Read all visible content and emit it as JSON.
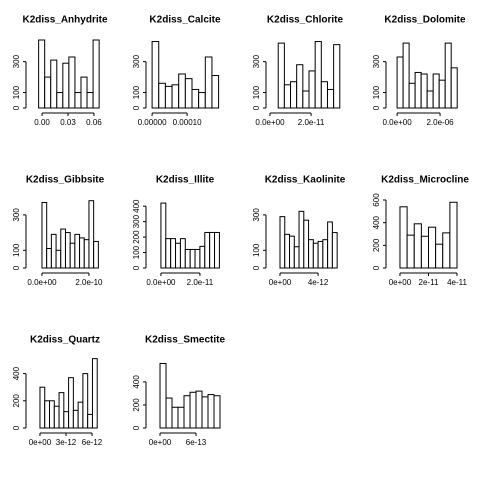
{
  "chart_data": [
    {
      "type": "histogram",
      "title": "K2diss_Anhydrite",
      "bins": [
        -0.004,
        0.003,
        0.01,
        0.017,
        0.024,
        0.031,
        0.038,
        0.045,
        0.052,
        0.059,
        0.066
      ],
      "values": [
        440,
        200,
        310,
        100,
        290,
        330,
        100,
        200,
        100,
        440
      ],
      "xlim": [
        -0.014,
        0.067
      ],
      "xticks": [
        {
          "value": 0,
          "label": "0.00"
        },
        0.03,
        0.06
      ],
      "ylim": [
        0,
        440
      ],
      "yticks": [
        0,
        100,
        300
      ]
    },
    {
      "type": "histogram",
      "title": "K2diss_Calcite",
      "bins": [
        0,
        1.9e-05,
        3.8e-05,
        5.7e-05,
        7.6e-05,
        9.5e-05,
        0.000114,
        0.000133,
        0.000152,
        0.000171,
        0.00019
      ],
      "values": [
        430,
        160,
        140,
        150,
        220,
        190,
        120,
        100,
        330,
        210
      ],
      "xlim": [
        -6e-06,
        0.000194
      ],
      "xticks": [
        {
          "value": 0,
          "label": "0.00000"
        },
        {
          "value": 0.0001,
          "label": "0.00010"
        }
      ],
      "ylim": [
        0,
        440
      ],
      "yticks": [
        0,
        100,
        300
      ]
    },
    {
      "type": "histogram",
      "title": "K2diss_Chlorite",
      "bins": [
        4e-12,
        7e-12,
        1e-11,
        1.3e-11,
        1.6e-11,
        1.9e-11,
        2.2e-11,
        2.5e-11,
        2.8e-11,
        3.1e-11,
        3.4e-11
      ],
      "values": [
        420,
        150,
        170,
        280,
        110,
        240,
        430,
        170,
        120,
        410
      ],
      "xlim": [
        0,
        3.41e-11
      ],
      "xticks": [
        {
          "value": 0,
          "label": "0.0e+00"
        },
        {
          "value": 2e-11,
          "label": "2.0e-11"
        }
      ],
      "ylim": [
        0,
        440
      ],
      "yticks": [
        0,
        100,
        300
      ]
    },
    {
      "type": "histogram",
      "title": "K2diss_Dolomite",
      "bins": [
        0,
        2.8e-07,
        5.6e-07,
        8.4e-07,
        1.12e-06,
        1.4e-06,
        1.68e-06,
        1.96e-06,
        2.24e-06,
        2.52e-06,
        2.8e-06
      ],
      "values": [
        330,
        420,
        160,
        230,
        220,
        110,
        220,
        180,
        420,
        260
      ],
      "xlim": [
        -3.3e-07,
        2.93e-06
      ],
      "xticks": [
        {
          "value": 0,
          "label": "0.0e+00"
        },
        {
          "value": 2e-06,
          "label": "2.0e-06"
        }
      ],
      "ylim": [
        0,
        440
      ],
      "yticks": [
        0,
        100,
        300
      ]
    },
    {
      "type": "histogram",
      "title": "K2diss_Gibbsite",
      "bins": [
        0,
        2e-11,
        4e-11,
        6e-11,
        8e-11,
        1e-10,
        1.2e-10,
        1.4e-10,
        1.6e-10,
        1.8e-10,
        2e-10,
        2.2e-10,
        2.4e-10
      ],
      "values": [
        370,
        110,
        190,
        100,
        220,
        200,
        140,
        190,
        170,
        160,
        380,
        150
      ],
      "xlim": [
        -5.1e-11,
        2.47e-10
      ],
      "xticks": [
        {
          "value": 0,
          "label": "0.0e+00"
        },
        {
          "value": 2e-10,
          "label": "2.0e-10"
        }
      ],
      "ylim": [
        0,
        384
      ],
      "yticks": [
        0,
        100,
        300
      ]
    },
    {
      "type": "histogram",
      "title": "K2diss_Illite",
      "bins": [
        0,
        2.5e-12,
        5e-12,
        7.5e-12,
        1e-11,
        1.25e-11,
        1.5e-11,
        1.75e-11,
        2e-11,
        2.25e-11,
        2.5e-11,
        2.75e-11,
        3e-11
      ],
      "values": [
        420,
        190,
        190,
        160,
        190,
        120,
        120,
        120,
        140,
        230,
        230,
        230
      ],
      "xlim": [
        -5.6e-12,
        3.03e-11
      ],
      "xticks": [
        {
          "value": 0,
          "label": "0.0e+00"
        },
        {
          "value": 2e-11,
          "label": "2.0e-11"
        }
      ],
      "ylim": [
        0,
        440
      ],
      "yticks": [
        0,
        100,
        200,
        300,
        400
      ]
    },
    {
      "type": "histogram",
      "title": "K2diss_Kaolinite",
      "bins": [
        0,
        5e-13,
        1e-12,
        1.5e-12,
        2e-12,
        2.5e-12,
        3e-12,
        3.5e-12,
        4e-12,
        4.5e-12,
        5e-12,
        5.5e-12,
        6e-12
      ],
      "values": [
        290,
        190,
        180,
        120,
        320,
        270,
        160,
        140,
        150,
        160,
        260,
        200
      ],
      "xlim": [
        -1.05e-12,
        6.3e-12
      ],
      "xticks": [
        {
          "value": 0,
          "label": "0e+00"
        },
        {
          "value": 4e-12,
          "label": "4e-12"
        }
      ],
      "ylim": [
        0,
        384
      ],
      "yticks": [
        0,
        100,
        300
      ]
    },
    {
      "type": "histogram",
      "title": "K2diss_Microcline",
      "bins": [
        0,
        5e-12,
        1e-11,
        1.5e-11,
        2e-11,
        2.5e-11,
        3e-11,
        3.5e-11,
        4e-11
      ],
      "values": [
        540,
        290,
        390,
        280,
        360,
        210,
        310,
        580
      ],
      "xlim": [
        -7e-12,
        4.21e-11
      ],
      "xticks": [
        {
          "value": 0,
          "label": "0e+00"
        },
        {
          "value": 2e-11,
          "label": "2e-11"
        },
        {
          "value": 4e-11,
          "label": "4e-11"
        }
      ],
      "ylim": [
        0,
        600
      ],
      "yticks": [
        0,
        200,
        400,
        600
      ]
    },
    {
      "type": "histogram",
      "title": "K2diss_Quartz",
      "bins": [
        0,
        5.5e-13,
        1.1e-12,
        1.65e-12,
        2.2e-12,
        2.75e-12,
        3.3e-12,
        3.85e-12,
        4.4e-12,
        4.95e-12,
        5.5e-12,
        6.05e-12,
        6.6e-12
      ],
      "values": [
        300,
        200,
        200,
        160,
        260,
        120,
        370,
        130,
        190,
        400,
        100,
        510
      ],
      "xlim": [
        -1.15e-12,
        6.92e-12
      ],
      "xticks": [
        {
          "value": 0,
          "label": "0e+00"
        },
        {
          "value": 3e-12,
          "label": "3e-12"
        },
        {
          "value": 6e-12,
          "label": "6e-12"
        }
      ],
      "ylim": [
        0,
        500
      ],
      "yticks": [
        0,
        200,
        400
      ]
    },
    {
      "type": "histogram",
      "title": "K2diss_Smectite",
      "bins": [
        0,
        1e-13,
        2e-13,
        3e-13,
        4e-13,
        5e-13,
        6e-13,
        7e-13,
        8e-13,
        9e-13,
        1e-12
      ],
      "values": [
        560,
        260,
        180,
        180,
        280,
        310,
        320,
        270,
        290,
        280
      ],
      "xlim": [
        -1.67e-13,
        1e-12
      ],
      "xticks": [
        {
          "value": 0,
          "label": "0e+00"
        },
        {
          "value": 6e-13,
          "label": "6e-13"
        }
      ],
      "ylim": [
        0,
        590
      ],
      "yticks": [
        0,
        200,
        400
      ]
    }
  ]
}
